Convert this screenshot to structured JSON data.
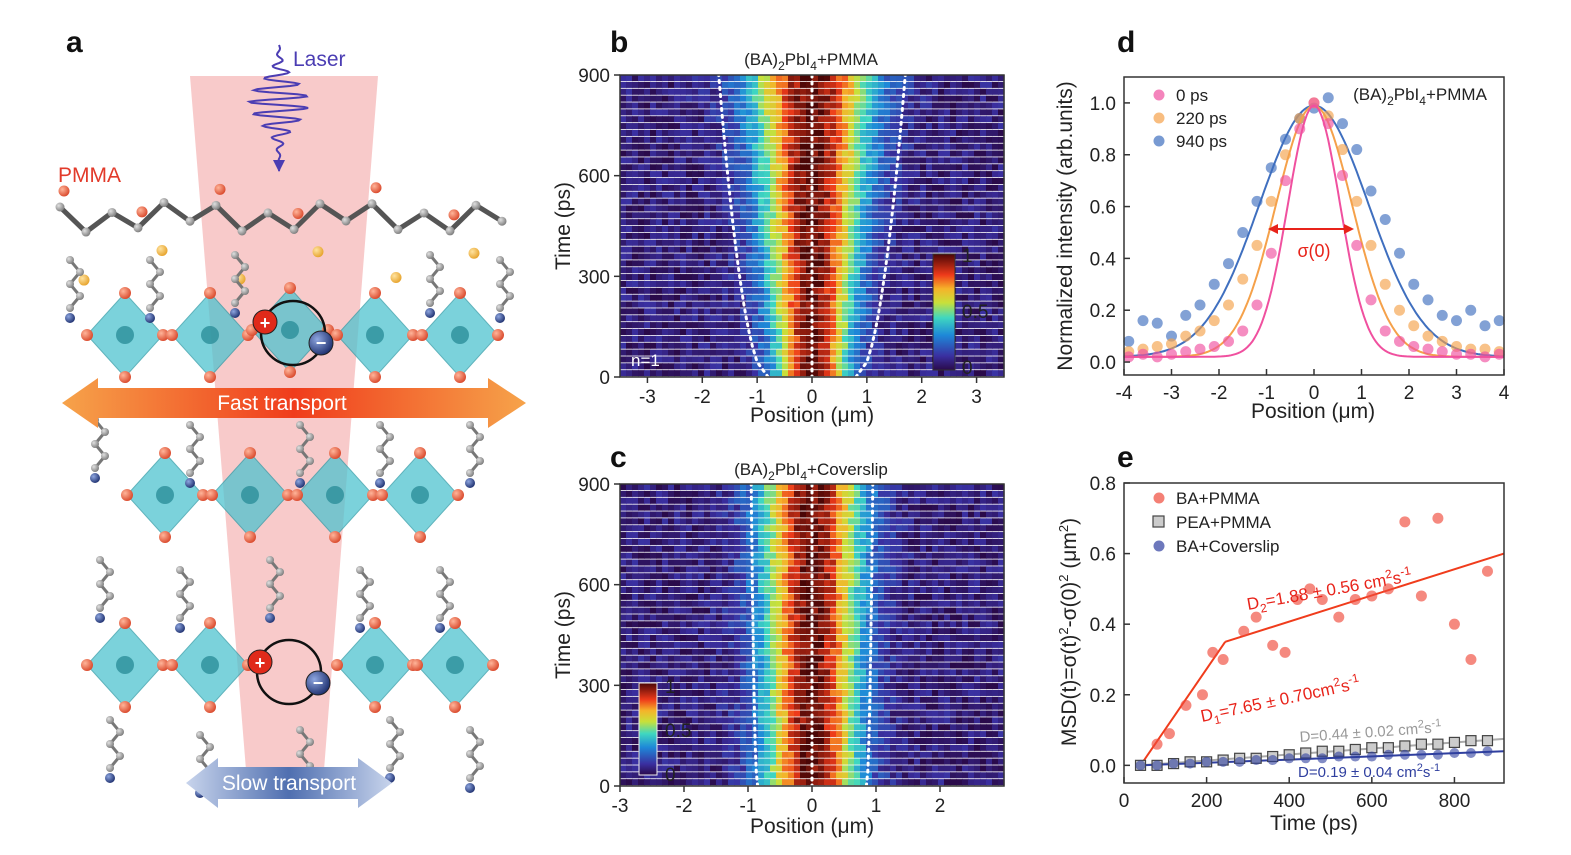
{
  "panel_letters": [
    "a",
    "b",
    "c",
    "d",
    "e"
  ],
  "schematic": {
    "laser_label": "Laser",
    "pmma_label": "PMMA",
    "fast_label": "Fast transport",
    "slow_label": "Slow transport"
  },
  "colors": {
    "beam": "#f6b8b8",
    "octahedron": "#4fc3cf",
    "fast_arrow": "#f03c1c",
    "slow_arrow": "#4f6fb0",
    "laser": "#4b3db3",
    "series_0ps": "#f0509f",
    "series_220ps": "#f5a14a",
    "series_940ps": "#3f6fbf",
    "ba_pmma": "#f04a3a",
    "pea_pmma": "#888888",
    "ba_coverslip": "#2f3f9f"
  },
  "chart_data": [
    {
      "id": "b",
      "type": "heatmap",
      "title": "(BA)2PbI4+PMMA",
      "title_parts": {
        "a": "(BA)",
        "sub1": "2",
        "b": "PbI",
        "sub2": "4",
        "c": "+PMMA"
      },
      "xlabel": "Position (μm)",
      "ylabel": "Time (ps)",
      "xlim": [
        -3.5,
        3.5
      ],
      "ylim": [
        0,
        900
      ],
      "xticks": [
        "-3",
        "-2",
        "-1",
        "0",
        "1",
        "2",
        "3"
      ],
      "yticks": [
        "0",
        "300",
        "600",
        "900"
      ],
      "colorbar_ticks": [
        "0",
        "0.5",
        "1"
      ],
      "annotation": "n=1",
      "sigma_ps": {
        "t0": 0.45,
        "t900": 0.78
      },
      "edge_lines": {
        "t0": 0.8,
        "t900": 1.7
      }
    },
    {
      "id": "c",
      "type": "heatmap",
      "title": "(BA)2PbI4+Coverslip",
      "title_parts": {
        "a": "(BA)",
        "sub1": "2",
        "b": "PbI",
        "sub2": "4",
        "c": "+Coverslip"
      },
      "xlabel": "Position (μm)",
      "ylabel": "Time (ps)",
      "xlim": [
        -3,
        3
      ],
      "ylim": [
        0,
        900
      ],
      "xticks": [
        "-3",
        "-2",
        "-1",
        "0",
        "1",
        "2"
      ],
      "yticks": [
        "0",
        "300",
        "600",
        "900"
      ],
      "colorbar_ticks": [
        "0",
        "0.5",
        "1"
      ],
      "sigma_ps": {
        "t0": 0.5,
        "t900": 0.55
      },
      "edge_lines": {
        "t0": 0.85,
        "t900": 0.95
      }
    },
    {
      "id": "d",
      "type": "scatter",
      "title": "(BA)2PbI4+PMMA",
      "title_parts": {
        "a": "(BA)",
        "sub1": "2",
        "b": "PbI",
        "sub2": "4",
        "c": "+PMMA"
      },
      "xlabel": "Position (μm)",
      "ylabel": "Normalized intensity (arb.units)",
      "xlim": [
        -4,
        4
      ],
      "ylim": [
        -0.05,
        1.1
      ],
      "xticks": [
        "-4",
        "-3",
        "-2",
        "-1",
        "0",
        "1",
        "2",
        "3",
        "4"
      ],
      "yticks": [
        "0.0",
        "0.2",
        "0.4",
        "0.6",
        "0.8",
        "1.0"
      ],
      "annotation": "σ(0)",
      "series": [
        {
          "name": "0 ps",
          "fit_sigma": 0.55,
          "x": [
            -3.9,
            -3.6,
            -3.3,
            -3.0,
            -2.7,
            -2.4,
            -2.1,
            -1.8,
            -1.5,
            -1.2,
            -0.9,
            -0.6,
            -0.3,
            0.0,
            0.3,
            0.6,
            0.9,
            1.2,
            1.5,
            1.8,
            2.1,
            2.4,
            2.7,
            3.0,
            3.3,
            3.6,
            3.9
          ],
          "y": [
            0.02,
            0.03,
            0.02,
            0.03,
            0.04,
            0.05,
            0.06,
            0.08,
            0.12,
            0.22,
            0.42,
            0.7,
            0.9,
            1.0,
            0.92,
            0.72,
            0.45,
            0.24,
            0.12,
            0.08,
            0.06,
            0.05,
            0.04,
            0.03,
            0.03,
            0.02,
            0.03
          ]
        },
        {
          "name": "220 ps",
          "fit_sigma": 0.8,
          "x": [
            -3.9,
            -3.6,
            -3.3,
            -3.0,
            -2.7,
            -2.4,
            -2.1,
            -1.8,
            -1.5,
            -1.2,
            -0.9,
            -0.6,
            -0.3,
            0.0,
            0.3,
            0.6,
            0.9,
            1.2,
            1.5,
            1.8,
            2.1,
            2.4,
            2.7,
            3.0,
            3.3,
            3.6,
            3.9
          ],
          "y": [
            0.04,
            0.05,
            0.06,
            0.07,
            0.1,
            0.12,
            0.16,
            0.22,
            0.32,
            0.45,
            0.62,
            0.8,
            0.94,
            1.0,
            0.95,
            0.82,
            0.62,
            0.45,
            0.3,
            0.2,
            0.14,
            0.1,
            0.08,
            0.06,
            0.05,
            0.05,
            0.04
          ]
        },
        {
          "name": "940 ps",
          "fit_sigma": 1.15,
          "x": [
            -3.9,
            -3.6,
            -3.3,
            -3.0,
            -2.7,
            -2.4,
            -2.1,
            -1.8,
            -1.5,
            -1.2,
            -0.9,
            -0.6,
            -0.3,
            0.0,
            0.3,
            0.6,
            0.9,
            1.2,
            1.5,
            1.8,
            2.1,
            2.4,
            2.7,
            3.0,
            3.3,
            3.6,
            3.9
          ],
          "y": [
            0.08,
            0.16,
            0.15,
            0.1,
            0.18,
            0.22,
            0.3,
            0.38,
            0.5,
            0.62,
            0.75,
            0.86,
            0.94,
            0.98,
            1.02,
            0.92,
            0.82,
            0.66,
            0.55,
            0.42,
            0.3,
            0.24,
            0.18,
            0.16,
            0.2,
            0.14,
            0.16
          ]
        }
      ]
    },
    {
      "id": "e",
      "type": "scatter",
      "xlabel": "Time (ps)",
      "ylabel": "MSD(t)=σ(t)2-σ(0)2 (μm2)",
      "ylabel_parts": {
        "a": "MSD(t)=σ(t)",
        "s1": "2",
        "b": "-σ(0)",
        "s2": "2",
        "c": " (μm",
        "s3": "2",
        "d": ")"
      },
      "xlim": [
        0,
        920
      ],
      "ylim": [
        -0.05,
        0.8
      ],
      "xticks": [
        "0",
        "200",
        "400",
        "600",
        "800"
      ],
      "yticks": [
        "0.0",
        "0.2",
        "0.4",
        "0.6",
        "0.8"
      ],
      "series": [
        {
          "name": "BA+PMMA",
          "x": [
            40,
            80,
            110,
            150,
            190,
            215,
            240,
            290,
            320,
            360,
            390,
            420,
            450,
            480,
            520,
            560,
            600,
            640,
            680,
            720,
            760,
            800,
            840,
            880
          ],
          "y": [
            0.0,
            0.06,
            0.09,
            0.17,
            0.2,
            0.32,
            0.3,
            0.38,
            0.42,
            0.34,
            0.32,
            0.47,
            0.5,
            0.47,
            0.42,
            0.47,
            0.48,
            0.5,
            0.69,
            0.48,
            0.7,
            0.4,
            0.3,
            0.55
          ]
        },
        {
          "name": "PEA+PMMA",
          "x": [
            40,
            80,
            120,
            160,
            200,
            240,
            280,
            320,
            360,
            400,
            440,
            480,
            520,
            560,
            600,
            640,
            680,
            720,
            760,
            800,
            840,
            880
          ],
          "y": [
            0.0,
            0.0,
            0.005,
            0.01,
            0.01,
            0.015,
            0.02,
            0.02,
            0.025,
            0.03,
            0.035,
            0.04,
            0.04,
            0.045,
            0.05,
            0.05,
            0.055,
            0.06,
            0.06,
            0.065,
            0.07,
            0.07
          ]
        },
        {
          "name": "BA+Coverslip",
          "x": [
            40,
            80,
            120,
            160,
            200,
            240,
            280,
            320,
            360,
            400,
            440,
            480,
            520,
            560,
            600,
            640,
            680,
            720,
            760,
            800,
            840,
            880
          ],
          "y": [
            0.0,
            0.0,
            0.005,
            0.005,
            0.01,
            0.01,
            0.01,
            0.015,
            0.015,
            0.02,
            0.02,
            0.02,
            0.025,
            0.025,
            0.025,
            0.03,
            0.03,
            0.03,
            0.03,
            0.035,
            0.035,
            0.04
          ]
        }
      ],
      "fits": [
        {
          "name": "D1",
          "x": [
            40,
            245
          ],
          "y": [
            0.0,
            0.35
          ]
        },
        {
          "name": "D2",
          "x": [
            245,
            920
          ],
          "y": [
            0.35,
            0.6
          ]
        },
        {
          "name": "D_pea",
          "x": [
            40,
            920
          ],
          "y": [
            0.0,
            0.075
          ]
        },
        {
          "name": "D_cov",
          "x": [
            40,
            920
          ],
          "y": [
            0.0,
            0.04
          ]
        }
      ],
      "annotations": {
        "d2": {
          "a": "D",
          "sub": "2",
          "b": "=1.88 ± 0.56 cm",
          "sup": "2",
          "c": "s",
          "sup2": "-1"
        },
        "d1": {
          "a": "D",
          "sub": "1",
          "b": "=7.65 ± 0.70cm",
          "sup": "2",
          "c": "s",
          "sup2": "-1"
        },
        "dpea": {
          "a": "D=0.44 ± 0.02 cm",
          "sup": "2",
          "c": "s",
          "sup2": "-1"
        },
        "dcov": {
          "a": "D=0.19 ± 0.04 cm",
          "sup": "2",
          "c": "s",
          "sup2": "-1"
        }
      }
    }
  ]
}
